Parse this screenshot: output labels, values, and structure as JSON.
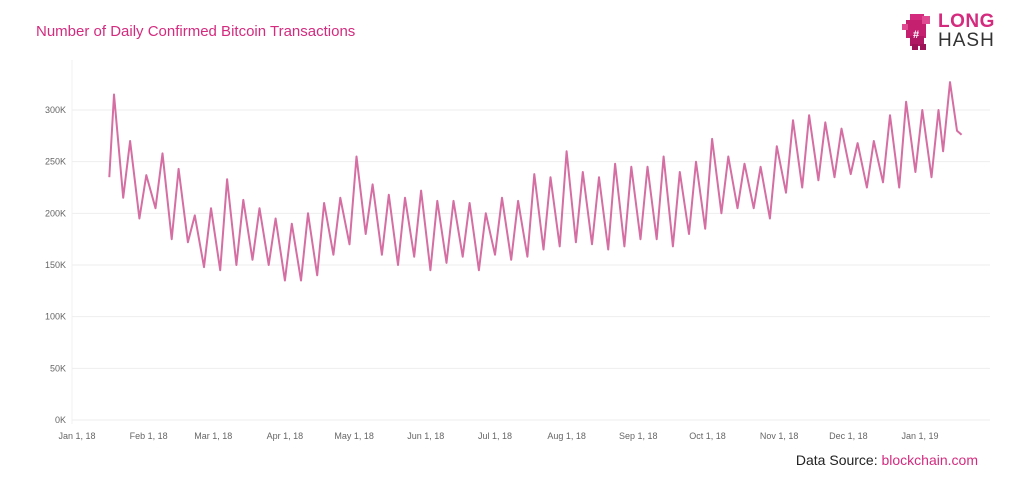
{
  "logo": {
    "line1": "LONG",
    "line2": "HASH"
  },
  "source": {
    "label": "Data Source:",
    "link": "blockchain.com"
  },
  "colors": {
    "line": "#d56ea3",
    "accent": "#d42b7f",
    "grid": "#eeeeee"
  },
  "chart_data": {
    "type": "line",
    "title": "Number of Daily Confirmed Bitcoin Transactions",
    "xlabel": "",
    "ylabel": "",
    "ylim": [
      0,
      300000
    ],
    "yticks": [
      0,
      50000,
      100000,
      150000,
      200000,
      250000,
      300000
    ],
    "ytick_labels": [
      "0K",
      "50K",
      "100K",
      "150K",
      "200K",
      "250K",
      "300K"
    ],
    "xticks": [
      "2018-01-01",
      "2018-02-01",
      "2018-03-01",
      "2018-04-01",
      "2018-05-01",
      "2018-06-01",
      "2018-07-01",
      "2018-08-01",
      "2018-09-01",
      "2018-10-01",
      "2018-11-01",
      "2018-12-01",
      "2019-01-01"
    ],
    "xtick_labels": [
      "Jan 1, 18",
      "Feb 1, 18",
      "Mar 1, 18",
      "Apr 1, 18",
      "May 1, 18",
      "Jun 1, 18",
      "Jul 1, 18",
      "Aug 1, 18",
      "Sep 1, 18",
      "Oct 1, 18",
      "Nov 1, 18",
      "Dec 1, 18",
      "Jan 1, 19"
    ],
    "grid": true,
    "points": [
      [
        "2018-01-15",
        235000
      ],
      [
        "2018-01-17",
        315000
      ],
      [
        "2018-01-21",
        215000
      ],
      [
        "2018-01-24",
        270000
      ],
      [
        "2018-01-28",
        195000
      ],
      [
        "2018-01-31",
        237000
      ],
      [
        "2018-02-04",
        205000
      ],
      [
        "2018-02-07",
        258000
      ],
      [
        "2018-02-11",
        175000
      ],
      [
        "2018-02-14",
        243000
      ],
      [
        "2018-02-18",
        172000
      ],
      [
        "2018-02-21",
        198000
      ],
      [
        "2018-02-25",
        148000
      ],
      [
        "2018-02-28",
        205000
      ],
      [
        "2018-03-04",
        145000
      ],
      [
        "2018-03-07",
        233000
      ],
      [
        "2018-03-11",
        150000
      ],
      [
        "2018-03-14",
        213000
      ],
      [
        "2018-03-18",
        155000
      ],
      [
        "2018-03-21",
        205000
      ],
      [
        "2018-03-25",
        150000
      ],
      [
        "2018-03-28",
        195000
      ],
      [
        "2018-04-01",
        135000
      ],
      [
        "2018-04-04",
        190000
      ],
      [
        "2018-04-08",
        135000
      ],
      [
        "2018-04-11",
        200000
      ],
      [
        "2018-04-15",
        140000
      ],
      [
        "2018-04-18",
        210000
      ],
      [
        "2018-04-22",
        160000
      ],
      [
        "2018-04-25",
        215000
      ],
      [
        "2018-04-29",
        170000
      ],
      [
        "2018-05-02",
        255000
      ],
      [
        "2018-05-06",
        180000
      ],
      [
        "2018-05-09",
        228000
      ],
      [
        "2018-05-13",
        160000
      ],
      [
        "2018-05-16",
        218000
      ],
      [
        "2018-05-20",
        150000
      ],
      [
        "2018-05-23",
        215000
      ],
      [
        "2018-05-27",
        158000
      ],
      [
        "2018-05-30",
        222000
      ],
      [
        "2018-06-03",
        145000
      ],
      [
        "2018-06-06",
        212000
      ],
      [
        "2018-06-10",
        152000
      ],
      [
        "2018-06-13",
        212000
      ],
      [
        "2018-06-17",
        158000
      ],
      [
        "2018-06-20",
        210000
      ],
      [
        "2018-06-24",
        145000
      ],
      [
        "2018-06-27",
        200000
      ],
      [
        "2018-07-01",
        160000
      ],
      [
        "2018-07-04",
        215000
      ],
      [
        "2018-07-08",
        155000
      ],
      [
        "2018-07-11",
        212000
      ],
      [
        "2018-07-15",
        158000
      ],
      [
        "2018-07-18",
        238000
      ],
      [
        "2018-07-22",
        165000
      ],
      [
        "2018-07-25",
        235000
      ],
      [
        "2018-07-29",
        168000
      ],
      [
        "2018-08-01",
        260000
      ],
      [
        "2018-08-05",
        172000
      ],
      [
        "2018-08-08",
        240000
      ],
      [
        "2018-08-12",
        170000
      ],
      [
        "2018-08-15",
        235000
      ],
      [
        "2018-08-19",
        165000
      ],
      [
        "2018-08-22",
        248000
      ],
      [
        "2018-08-26",
        168000
      ],
      [
        "2018-08-29",
        245000
      ],
      [
        "2018-09-02",
        175000
      ],
      [
        "2018-09-05",
        245000
      ],
      [
        "2018-09-09",
        175000
      ],
      [
        "2018-09-12",
        255000
      ],
      [
        "2018-09-16",
        168000
      ],
      [
        "2018-09-19",
        240000
      ],
      [
        "2018-09-23",
        180000
      ],
      [
        "2018-09-26",
        250000
      ],
      [
        "2018-09-30",
        185000
      ],
      [
        "2018-10-03",
        272000
      ],
      [
        "2018-10-07",
        200000
      ],
      [
        "2018-10-10",
        255000
      ],
      [
        "2018-10-14",
        205000
      ],
      [
        "2018-10-17",
        248000
      ],
      [
        "2018-10-21",
        205000
      ],
      [
        "2018-10-24",
        245000
      ],
      [
        "2018-10-28",
        195000
      ],
      [
        "2018-10-31",
        265000
      ],
      [
        "2018-11-04",
        220000
      ],
      [
        "2018-11-07",
        290000
      ],
      [
        "2018-11-11",
        225000
      ],
      [
        "2018-11-14",
        295000
      ],
      [
        "2018-11-18",
        232000
      ],
      [
        "2018-11-21",
        288000
      ],
      [
        "2018-11-25",
        235000
      ],
      [
        "2018-11-28",
        282000
      ],
      [
        "2018-12-02",
        238000
      ],
      [
        "2018-12-05",
        268000
      ],
      [
        "2018-12-09",
        225000
      ],
      [
        "2018-12-12",
        270000
      ],
      [
        "2018-12-16",
        230000
      ],
      [
        "2018-12-19",
        295000
      ],
      [
        "2018-12-23",
        225000
      ],
      [
        "2018-12-26",
        308000
      ],
      [
        "2018-12-30",
        240000
      ],
      [
        "2019-01-02",
        300000
      ],
      [
        "2019-01-06",
        235000
      ],
      [
        "2019-01-09",
        300000
      ],
      [
        "2019-01-11",
        260000
      ],
      [
        "2019-01-14",
        327000
      ],
      [
        "2019-01-17",
        280000
      ],
      [
        "2019-01-19",
        276000
      ]
    ]
  }
}
